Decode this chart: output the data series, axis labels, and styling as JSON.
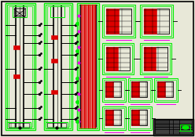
{
  "bg_color": "#e8e8d8",
  "green": "#00ee00",
  "red": "#dd0000",
  "magenta": "#ee00ee",
  "black": "#000000",
  "white": "#ffffff",
  "dark_bg": "#c8c8b8"
}
